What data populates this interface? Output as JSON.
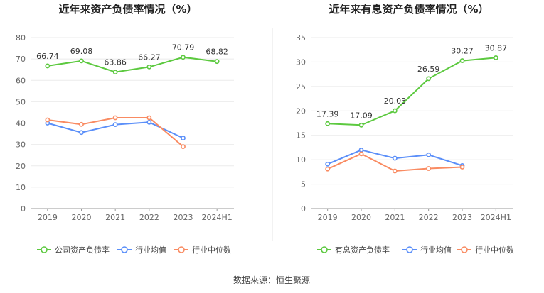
{
  "source": "数据来源：恒生聚源",
  "chart_data": [
    {
      "type": "line",
      "title": "近年来资产负债率情况（%）",
      "categories": [
        "2019",
        "2020",
        "2021",
        "2022",
        "2023",
        "2024H1"
      ],
      "ylim": [
        0,
        80
      ],
      "yticks": [
        0,
        10,
        20,
        30,
        40,
        50,
        60,
        70,
        80
      ],
      "grid": true,
      "legend_position": "bottom",
      "series": [
        {
          "name": "公司资产负债率",
          "color": "#5cc93f",
          "values": [
            66.74,
            69.08,
            63.86,
            66.27,
            70.79,
            68.82
          ],
          "labels": [
            "66.74",
            "69.08",
            "63.86",
            "66.27",
            "70.79",
            "68.82"
          ]
        },
        {
          "name": "行业均值",
          "color": "#5b8ff9",
          "values": [
            40.0,
            35.6,
            39.3,
            40.4,
            33.0,
            null
          ]
        },
        {
          "name": "行业中位数",
          "color": "#f98b62",
          "values": [
            41.5,
            39.4,
            42.5,
            42.5,
            29.0,
            null
          ]
        }
      ]
    },
    {
      "type": "line",
      "title": "近年来有息资产负债率情况（%）",
      "categories": [
        "2019",
        "2020",
        "2021",
        "2022",
        "2023",
        "2024H1"
      ],
      "ylim": [
        0,
        35
      ],
      "yticks": [
        0,
        5,
        10,
        15,
        20,
        25,
        30,
        35
      ],
      "grid": true,
      "legend_position": "bottom",
      "series": [
        {
          "name": "有息资产负债率",
          "color": "#5cc93f",
          "values": [
            17.39,
            17.09,
            20.03,
            26.59,
            30.27,
            30.87
          ],
          "labels": [
            "17.39",
            "17.09",
            "20.03",
            "26.59",
            "30.27",
            "30.87"
          ]
        },
        {
          "name": "行业均值",
          "color": "#5b8ff9",
          "values": [
            9.1,
            12.0,
            10.3,
            11.0,
            8.8,
            null
          ]
        },
        {
          "name": "行业中位数",
          "color": "#f98b62",
          "values": [
            8.1,
            11.2,
            7.7,
            8.2,
            8.5,
            null
          ]
        }
      ]
    }
  ]
}
